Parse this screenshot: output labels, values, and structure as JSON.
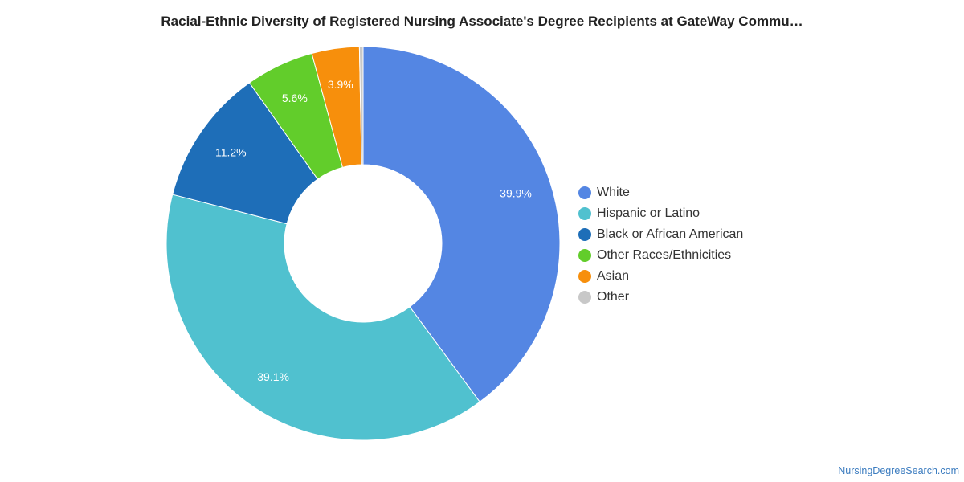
{
  "chart_data": {
    "type": "pie",
    "variant": "donut",
    "title": "Racial-Ethnic Diversity of Registered Nursing Associate's Degree Recipients at GateWay Commu…",
    "categories": [
      "White",
      "Hispanic or Latino",
      "Black or African American",
      "Other Races/Ethnicities",
      "Asian",
      "Other"
    ],
    "values": [
      39.9,
      39.1,
      11.2,
      5.6,
      3.9,
      0.3
    ],
    "data_labels": [
      "39.9%",
      "39.1%",
      "11.2%",
      "5.6%",
      "3.9%",
      ""
    ],
    "colors": [
      "#5486e3",
      "#50c1cf",
      "#1e6eb8",
      "#62cd2b",
      "#f78f0c",
      "#c8c8c8"
    ],
    "legend_position": "right",
    "unit": "%"
  },
  "watermark": "NursingDegreeSearch.com"
}
